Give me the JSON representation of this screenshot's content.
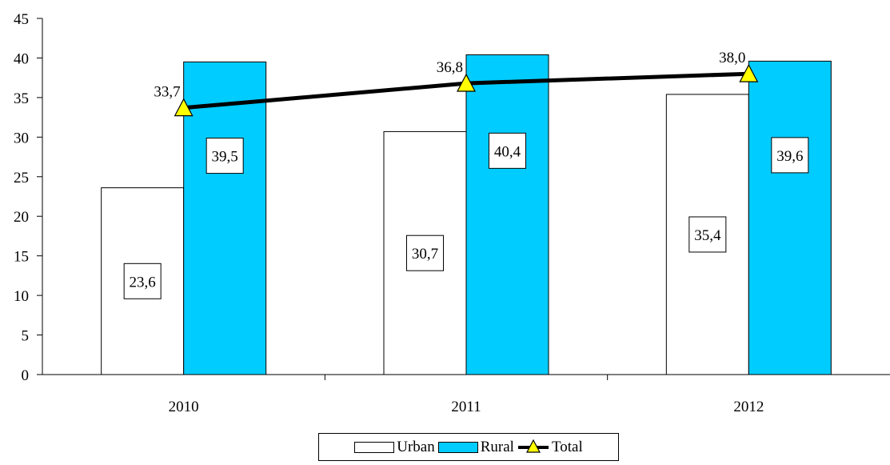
{
  "chart_data": {
    "type": "bar",
    "categories": [
      "2010",
      "2011",
      "2012"
    ],
    "series": [
      {
        "name": "Urban",
        "type": "bar",
        "values": [
          23.6,
          30.7,
          35.4
        ],
        "labels": [
          "23,6",
          "30,7",
          "35,4"
        ],
        "color": "#ffffff"
      },
      {
        "name": "Rural",
        "type": "bar",
        "values": [
          39.5,
          40.4,
          39.6
        ],
        "labels": [
          "39,5",
          "40,4",
          "39,6"
        ],
        "color": "#00ccff"
      },
      {
        "name": "Total",
        "type": "line",
        "values": [
          33.7,
          36.8,
          38.0
        ],
        "labels": [
          "33,7",
          "36,8",
          "38,0"
        ],
        "color": "#000000",
        "marker": "triangle",
        "marker_color": "#ffff00"
      }
    ],
    "yticks": [
      "0",
      "5",
      "10",
      "15",
      "20",
      "25",
      "30",
      "35",
      "40",
      "45"
    ],
    "ylim": [
      0,
      45
    ],
    "xlabel": "",
    "ylabel": "",
    "grid": false,
    "legend_position": "bottom"
  }
}
